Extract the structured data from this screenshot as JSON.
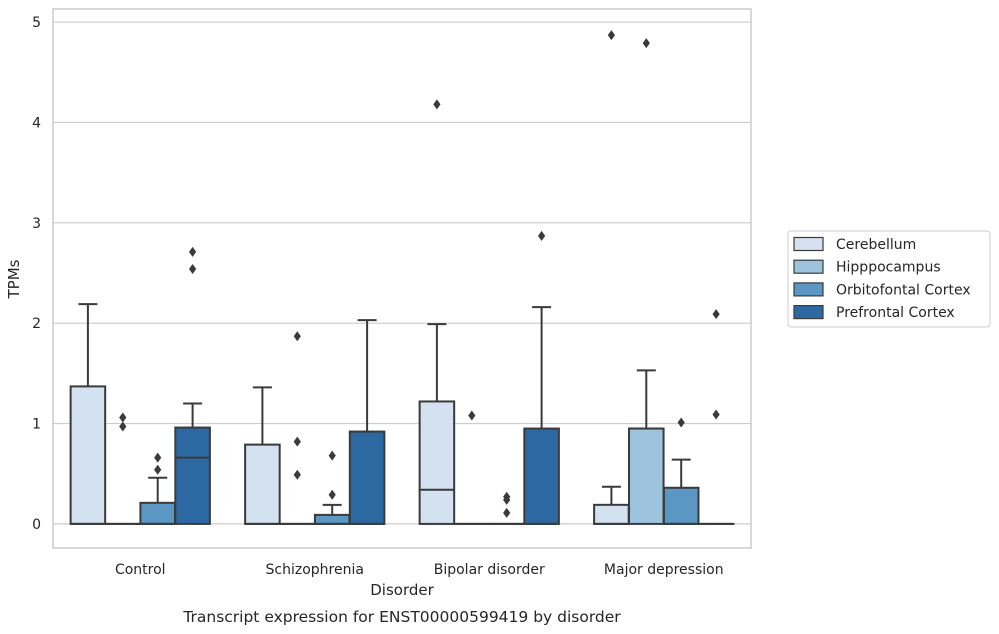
{
  "chart_data": {
    "type": "box",
    "xlabel": "Disorder",
    "ylabel": "TPMs",
    "caption": "Transcript expression for ENST00000599419 by disorder",
    "ylim": [
      -0.24,
      5.13
    ],
    "yticks": [
      0,
      1,
      2,
      3,
      4,
      5
    ],
    "grid": "horizontal",
    "legend_position": "right",
    "categories": [
      "Control",
      "Schizophrenia",
      "Bipolar disorder",
      "Major depression"
    ],
    "series": [
      {
        "name": "Cerebellum",
        "color": "#d4e1f0",
        "boxes": [
          {
            "q1": 0,
            "median": 0,
            "q3": 1.37,
            "whisker_low": 0,
            "whisker_high": 2.19,
            "outliers": []
          },
          {
            "q1": 0,
            "median": 0,
            "q3": 0.79,
            "whisker_low": 0,
            "whisker_high": 1.36,
            "outliers": []
          },
          {
            "q1": 0,
            "median": 0.34,
            "q3": 1.22,
            "whisker_low": 0,
            "whisker_high": 1.99,
            "outliers": [
              4.18
            ]
          },
          {
            "q1": 0,
            "median": 0,
            "q3": 0.19,
            "whisker_low": 0,
            "whisker_high": 0.37,
            "outliers": [
              4.87
            ]
          }
        ]
      },
      {
        "name": "Hipppocampus",
        "color": "#9ec3dc",
        "boxes": [
          {
            "q1": 0,
            "median": 0,
            "q3": 0,
            "whisker_low": 0,
            "whisker_high": 0,
            "outliers": [
              1.06,
              0.97
            ]
          },
          {
            "q1": 0,
            "median": 0,
            "q3": 0,
            "whisker_low": 0,
            "whisker_high": 0,
            "outliers": [
              1.87,
              0.82,
              0.49
            ]
          },
          {
            "q1": 0,
            "median": 0,
            "q3": 0,
            "whisker_low": 0,
            "whisker_high": 0,
            "outliers": [
              1.08
            ]
          },
          {
            "q1": 0,
            "median": 0.95,
            "q3": 0.95,
            "whisker_low": 0,
            "whisker_high": 1.53,
            "outliers": [
              4.79
            ]
          }
        ]
      },
      {
        "name": "Orbitofontal Cortex",
        "color": "#5b97c3",
        "boxes": [
          {
            "q1": 0,
            "median": 0,
            "q3": 0.21,
            "whisker_low": 0,
            "whisker_high": 0.46,
            "outliers": [
              0.66,
              0.54
            ]
          },
          {
            "q1": 0,
            "median": 0,
            "q3": 0.09,
            "whisker_low": 0,
            "whisker_high": 0.19,
            "outliers": [
              0.68,
              0.29
            ]
          },
          {
            "q1": 0,
            "median": 0,
            "q3": 0,
            "whisker_low": 0,
            "whisker_high": 0,
            "outliers": [
              0.27,
              0.24,
              0.11
            ]
          },
          {
            "q1": 0,
            "median": 0,
            "q3": 0.36,
            "whisker_low": 0,
            "whisker_high": 0.64,
            "outliers": [
              1.01
            ]
          }
        ]
      },
      {
        "name": "Prefrontal Cortex",
        "color": "#2c69a3",
        "boxes": [
          {
            "q1": 0,
            "median": 0.66,
            "q3": 0.96,
            "whisker_low": 0,
            "whisker_high": 1.2,
            "outliers": [
              2.71,
              2.54
            ]
          },
          {
            "q1": 0,
            "median": 0,
            "q3": 0.92,
            "whisker_low": 0,
            "whisker_high": 2.03,
            "outliers": []
          },
          {
            "q1": 0,
            "median": 0,
            "q3": 0.95,
            "whisker_low": 0,
            "whisker_high": 2.16,
            "outliers": [
              2.87
            ]
          },
          {
            "q1": 0,
            "median": 0,
            "q3": 0,
            "whisker_low": 0,
            "whisker_high": 0,
            "outliers": [
              2.09,
              1.09
            ]
          }
        ]
      }
    ]
  },
  "colors": {
    "edge": "#3a3a3a",
    "grid": "#cccccc",
    "frame": "#cccccc"
  }
}
